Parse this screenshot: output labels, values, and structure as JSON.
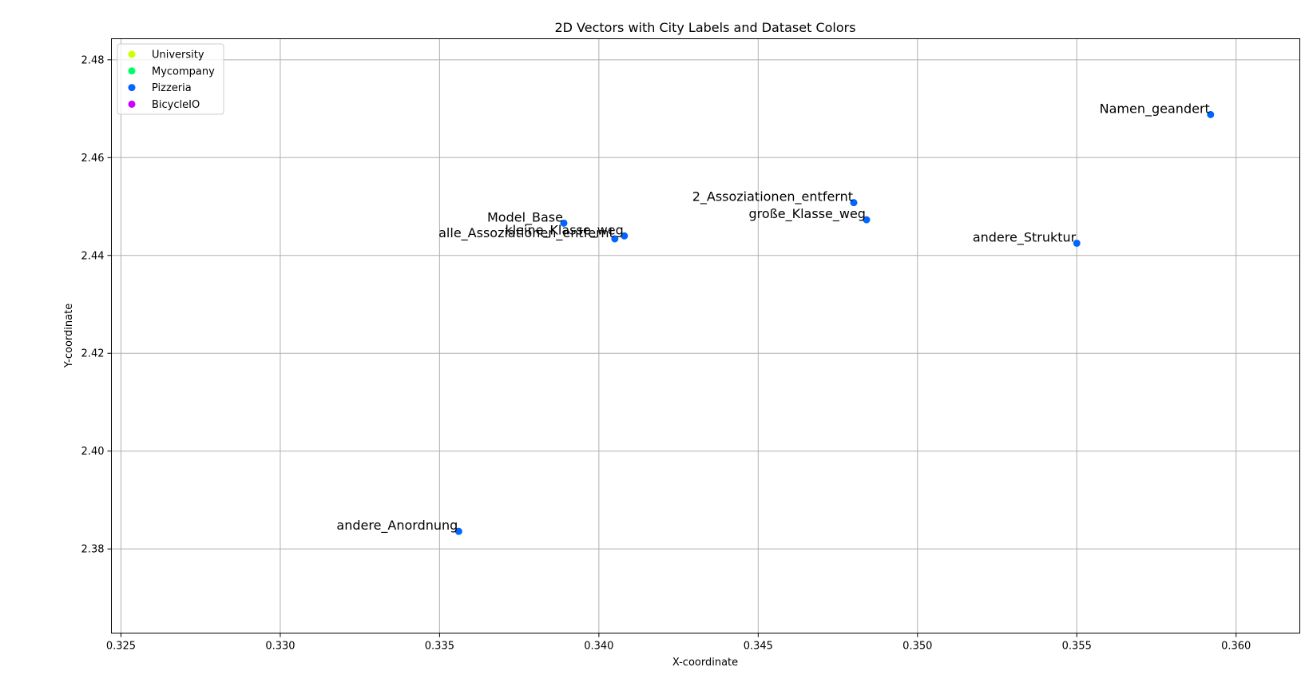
{
  "chart_data": {
    "type": "scatter",
    "title": "2D Vectors with City Labels and Dataset Colors",
    "xlabel": "X-coordinate",
    "ylabel": "Y-coordinate",
    "xlim": [
      0.3247,
      0.362
    ],
    "ylim": [
      2.3628,
      2.4843
    ],
    "x_ticks": [
      0.325,
      0.33,
      0.335,
      0.34,
      0.345,
      0.35,
      0.355,
      0.36
    ],
    "x_tick_labels": [
      "0.325",
      "0.330",
      "0.335",
      "0.340",
      "0.345",
      "0.350",
      "0.355",
      "0.360"
    ],
    "y_ticks": [
      2.38,
      2.4,
      2.42,
      2.44,
      2.46,
      2.48
    ],
    "y_tick_labels": [
      "2.38",
      "2.40",
      "2.42",
      "2.44",
      "2.46",
      "2.48"
    ],
    "grid": true,
    "legend_position": "top-left",
    "series": [
      {
        "name": "University",
        "color": "#ccff00",
        "points": []
      },
      {
        "name": "Mycompany",
        "color": "#00ff66",
        "points": []
      },
      {
        "name": "Pizzeria",
        "color": "#0066ff",
        "points": [
          {
            "label": "Namen_geandert",
            "x": 0.3592,
            "y": 2.4688
          },
          {
            "label": "2_Assoziationen_entfernt",
            "x": 0.348,
            "y": 2.4508
          },
          {
            "label": "große_Klasse_weg",
            "x": 0.3484,
            "y": 2.4473
          },
          {
            "label": "Model_Base",
            "x": 0.3389,
            "y": 2.4466
          },
          {
            "label": "kleine_Klasse_weg",
            "x": 0.3408,
            "y": 2.444
          },
          {
            "label": "alle_Assoziationen_entfernt",
            "x": 0.3405,
            "y": 2.4434
          },
          {
            "label": "andere_Struktur",
            "x": 0.355,
            "y": 2.4425
          },
          {
            "label": "andere_Anordnung",
            "x": 0.3356,
            "y": 2.3836
          }
        ]
      },
      {
        "name": "BicycleIO",
        "color": "#cc00ff",
        "points": []
      }
    ]
  }
}
